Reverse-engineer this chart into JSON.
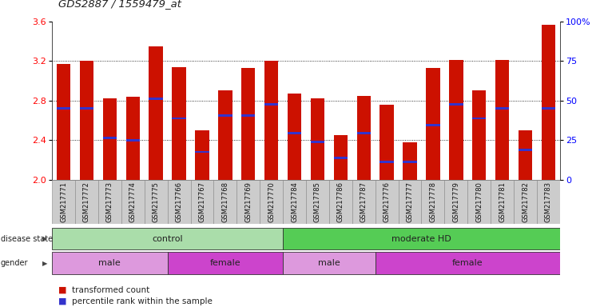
{
  "title": "GDS2887 / 1559479_at",
  "samples": [
    "GSM217771",
    "GSM217772",
    "GSM217773",
    "GSM217774",
    "GSM217775",
    "GSM217766",
    "GSM217767",
    "GSM217768",
    "GSM217769",
    "GSM217770",
    "GSM217784",
    "GSM217785",
    "GSM217786",
    "GSM217787",
    "GSM217776",
    "GSM217777",
    "GSM217778",
    "GSM217779",
    "GSM217780",
    "GSM217781",
    "GSM217782",
    "GSM217783"
  ],
  "bar_heights": [
    3.17,
    3.2,
    2.82,
    2.84,
    3.35,
    3.14,
    2.5,
    2.9,
    3.13,
    3.2,
    2.87,
    2.82,
    2.45,
    2.85,
    2.76,
    2.38,
    3.13,
    3.21,
    2.9,
    3.21,
    2.5,
    3.57
  ],
  "percentile_values": [
    2.72,
    2.72,
    2.42,
    2.4,
    2.82,
    2.62,
    2.28,
    2.65,
    2.65,
    2.76,
    2.47,
    2.38,
    2.22,
    2.47,
    2.18,
    2.18,
    2.55,
    2.76,
    2.62,
    2.72,
    2.3,
    2.72
  ],
  "ymin": 2.0,
  "ymax": 3.6,
  "yticks": [
    2.0,
    2.4,
    2.8,
    3.2,
    3.6
  ],
  "right_ytick_labels": [
    "0",
    "25",
    "50",
    "75",
    "100%"
  ],
  "bar_color": "#cc1100",
  "blue_color": "#3333cc",
  "disease_state_groups": [
    {
      "label": "control",
      "start": 0,
      "end": 10,
      "color": "#aaddaa"
    },
    {
      "label": "moderate HD",
      "start": 10,
      "end": 22,
      "color": "#55cc55"
    }
  ],
  "gender_groups": [
    {
      "label": "male",
      "start": 0,
      "end": 5,
      "color": "#dd99dd"
    },
    {
      "label": "female",
      "start": 5,
      "end": 10,
      "color": "#cc44cc"
    },
    {
      "label": "male",
      "start": 10,
      "end": 14,
      "color": "#dd99dd"
    },
    {
      "label": "female",
      "start": 14,
      "end": 22,
      "color": "#cc44cc"
    }
  ],
  "legend_items": [
    {
      "label": "transformed count",
      "color": "#cc1100"
    },
    {
      "label": "percentile rank within the sample",
      "color": "#3333cc"
    }
  ]
}
